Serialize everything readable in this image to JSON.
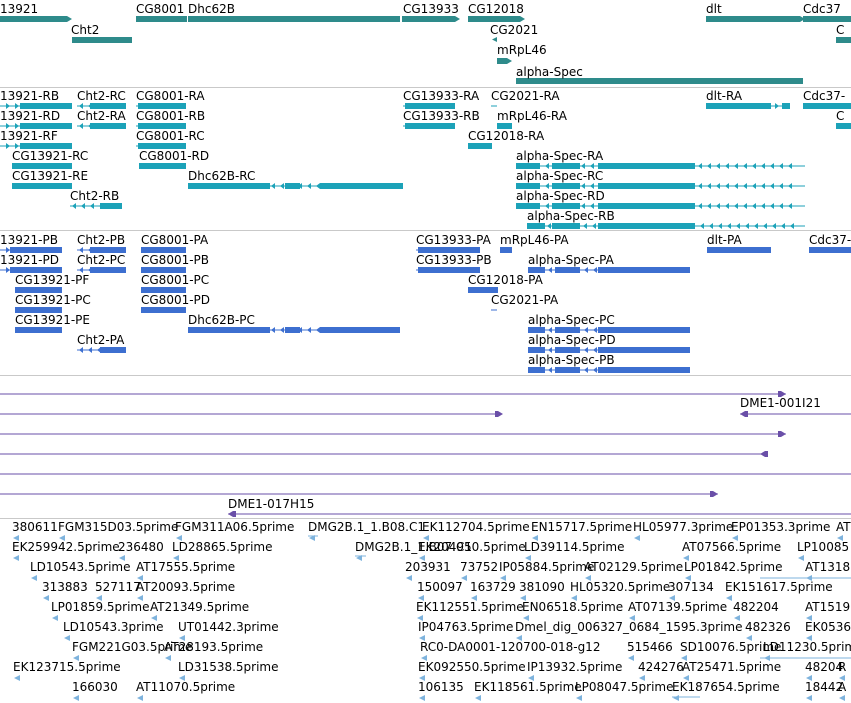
{
  "colors": {
    "gene": "#2e8b8b",
    "rna": "#1ca2b8",
    "protein": "#3d6fd0",
    "clone": "#6a4fa8",
    "est": "#7eb3dd",
    "separator": "#c9c9c9"
  },
  "tracks": {
    "genes": {
      "labels": [
        "13921",
        "Cht2",
        "CG8001",
        "Dhc62B",
        "CG13933",
        "CG12018",
        "CG2021",
        "mRpL46",
        "alpha-Spec",
        "dlt",
        "Cdc37",
        "C"
      ]
    },
    "transcripts": {
      "labels": [
        "13921-RB",
        "Cht2-RC",
        "CG8001-RA",
        "CG13933-RA",
        "CG2021-RA",
        "dlt-RA",
        "Cdc37-",
        "13921-RD",
        "Cht2-RA",
        "CG8001-RB",
        "CG13933-RB",
        "mRpL46-RA",
        "13921-RF",
        "CG8001-RC",
        "CG12018-RA",
        "CG13921-RC",
        "CG8001-RD",
        "alpha-Spec-RA",
        "CG13921-RE",
        "Dhc62B-RC",
        "alpha-Spec-RC",
        "Cht2-RB",
        "alpha-Spec-RD",
        "alpha-Spec-RB",
        "C"
      ]
    },
    "proteins": {
      "labels": [
        "13921-PB",
        "Cht2-PB",
        "CG8001-PA",
        "CG13933-PA",
        "mRpL46-PA",
        "dlt-PA",
        "Cdc37-",
        "13921-PD",
        "Cht2-PC",
        "CG8001-PB",
        "CG13933-PB",
        "alpha-Spec-PA",
        "CG13921-PF",
        "CG8001-PC",
        "CG12018-PA",
        "CG13921-PC",
        "CG8001-PD",
        "CG2021-PA",
        "CG13921-PE",
        "Dhc62B-PC",
        "alpha-Spec-PC",
        "Cht2-PA",
        "alpha-Spec-PD",
        "alpha-Spec-PB"
      ]
    },
    "clones": {
      "labels": [
        "DME1-001I21",
        "DME1-017H15"
      ]
    },
    "ests": {
      "labels": [
        "380611",
        "FGM315D03.5prime",
        "FGM311A06.5prime",
        "DMG2B.1_1.B08.C1",
        "EK112704.5prime",
        "EN15717.5prime",
        "HL05977.3prime",
        "EP01353.3prime",
        "AT",
        "EK259942.5prime",
        "236480",
        "LD28865.5prime",
        "DMG2B.1_1.B07.C1",
        "EK204950.5prime",
        "LD39114.5prime",
        "AT07566.5prime",
        "LP10085",
        "LD10543.5prime",
        "AT17555.5prime",
        "203931",
        "73752",
        "IP05884.5prime",
        "AT02129.5prime",
        "LP01842.5prime",
        "AT1318",
        "313883",
        "527117",
        "AT20093.5prime",
        "150097",
        "163729",
        "381090",
        "HL05320.5prime",
        "307134",
        "EK151617.5prime",
        "LP01859.5prime",
        "AT21349.5prime",
        "EK112551.5prime",
        "EN06518.5prime",
        "AT07139.5prime",
        "482204",
        "AT1519",
        "LD10543.3prime",
        "UT01442.3prime",
        "IP04763.5prime",
        "Dmel_dig_006327_0684_1595.3prime",
        "482326",
        "EK0536",
        "FGM221G03.5prime",
        "AT28193.5prime",
        "RC0-DA0001-120700-018-g12",
        "515466",
        "SD10076.5prime",
        "LD11230.5prime",
        "EK123715.5prime",
        "LD31538.5prime",
        "EK092550.5prime",
        "IP13932.5prime",
        "424276",
        "AT25471.5prime",
        "48204",
        "R",
        "166030",
        "AT11070.5prime",
        "106135",
        "EK118561.5prime",
        "LP08047.5prime",
        "EK187654.5prime",
        "18442",
        "A"
      ]
    }
  }
}
